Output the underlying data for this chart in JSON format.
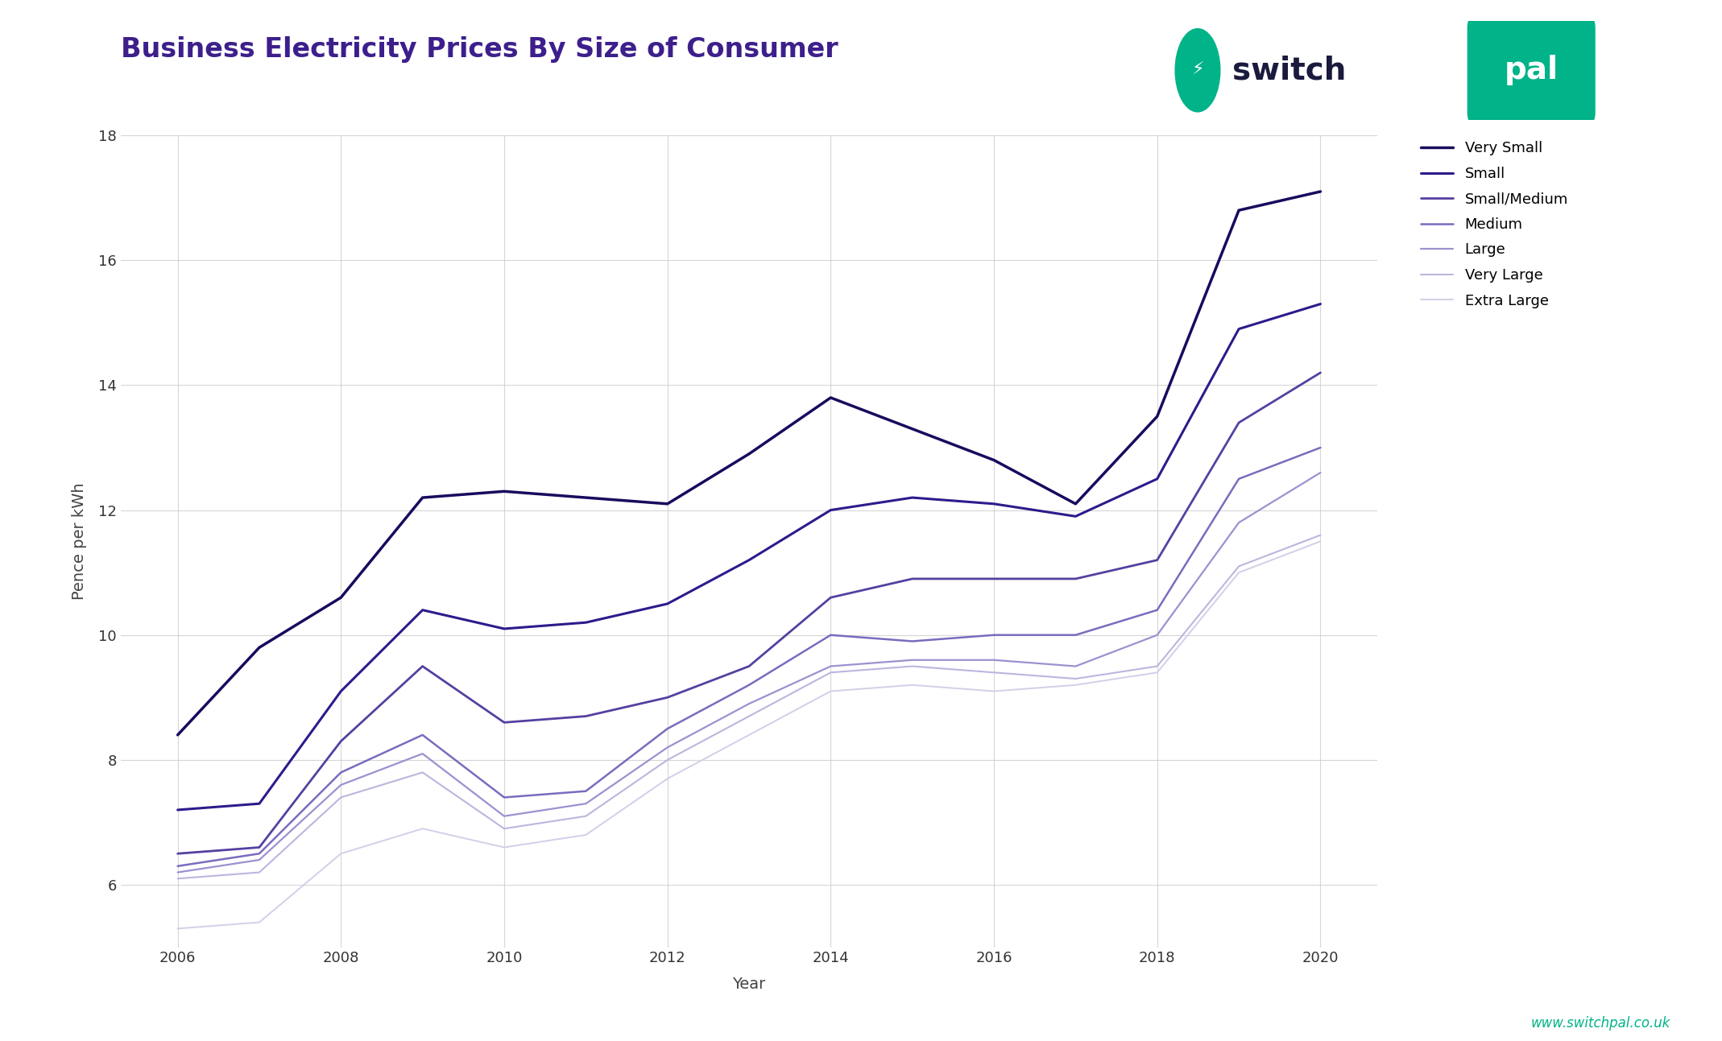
{
  "title": "Business Electricity Prices By Size of Consumer",
  "xlabel": "Year",
  "ylabel": "Pence per kWh",
  "title_color": "#3d1f8c",
  "axis_label_color": "#444444",
  "background_color": "#ffffff",
  "plot_bg_color": "#ffffff",
  "grid_color": "#cccccc",
  "url_text": "www.switchpal.co.uk",
  "url_color": "#00b388",
  "years": [
    2006,
    2007,
    2008,
    2009,
    2010,
    2011,
    2012,
    2013,
    2014,
    2015,
    2016,
    2017,
    2018,
    2019,
    2020
  ],
  "series": [
    {
      "label": "Very Small",
      "color": "#1a0a5e",
      "linewidth": 2.5,
      "values": [
        8.4,
        9.8,
        10.6,
        12.2,
        12.3,
        12.2,
        12.1,
        12.9,
        13.8,
        13.3,
        12.8,
        12.1,
        13.5,
        16.8,
        17.1
      ]
    },
    {
      "label": "Small",
      "color": "#2d1b8c",
      "linewidth": 2.2,
      "values": [
        7.2,
        7.3,
        9.1,
        10.4,
        10.1,
        10.2,
        10.5,
        11.2,
        12.0,
        12.2,
        12.1,
        11.9,
        12.5,
        14.9,
        15.3
      ]
    },
    {
      "label": "Small/Medium",
      "color": "#5540a0",
      "linewidth": 2.0,
      "values": [
        6.5,
        6.6,
        8.3,
        9.5,
        8.6,
        8.7,
        9.0,
        9.5,
        10.6,
        10.9,
        10.9,
        10.9,
        11.2,
        13.4,
        14.2
      ]
    },
    {
      "label": "Medium",
      "color": "#7b6bbf",
      "linewidth": 1.8,
      "values": [
        6.3,
        6.5,
        7.8,
        8.4,
        7.4,
        7.5,
        8.5,
        9.2,
        10.0,
        9.9,
        10.0,
        10.0,
        10.4,
        12.5,
        13.0
      ]
    },
    {
      "label": "Large",
      "color": "#9e90d0",
      "linewidth": 1.6,
      "values": [
        6.2,
        6.4,
        7.6,
        8.1,
        7.1,
        7.3,
        8.2,
        8.9,
        9.5,
        9.6,
        9.6,
        9.5,
        10.0,
        11.8,
        12.6
      ]
    },
    {
      "label": "Very Large",
      "color": "#bdb5de",
      "linewidth": 1.5,
      "values": [
        6.1,
        6.2,
        7.4,
        7.8,
        6.9,
        7.1,
        8.0,
        8.7,
        9.4,
        9.5,
        9.4,
        9.3,
        9.5,
        11.1,
        11.6
      ]
    },
    {
      "label": "Extra Large",
      "color": "#d4cee8",
      "linewidth": 1.4,
      "values": [
        5.3,
        5.4,
        6.5,
        6.9,
        6.6,
        6.8,
        7.7,
        8.4,
        9.1,
        9.2,
        9.1,
        9.2,
        9.4,
        11.0,
        11.5
      ]
    }
  ],
  "ylim": [
    5,
    18
  ],
  "yticks": [
    6,
    8,
    10,
    12,
    14,
    16,
    18
  ],
  "xticks": [
    2006,
    2008,
    2010,
    2012,
    2014,
    2016,
    2018,
    2020
  ],
  "title_fontsize": 24,
  "axis_label_fontsize": 14,
  "tick_fontsize": 13,
  "legend_fontsize": 13,
  "logo_green": "#00b388",
  "logo_dark": "#1a1a3e"
}
